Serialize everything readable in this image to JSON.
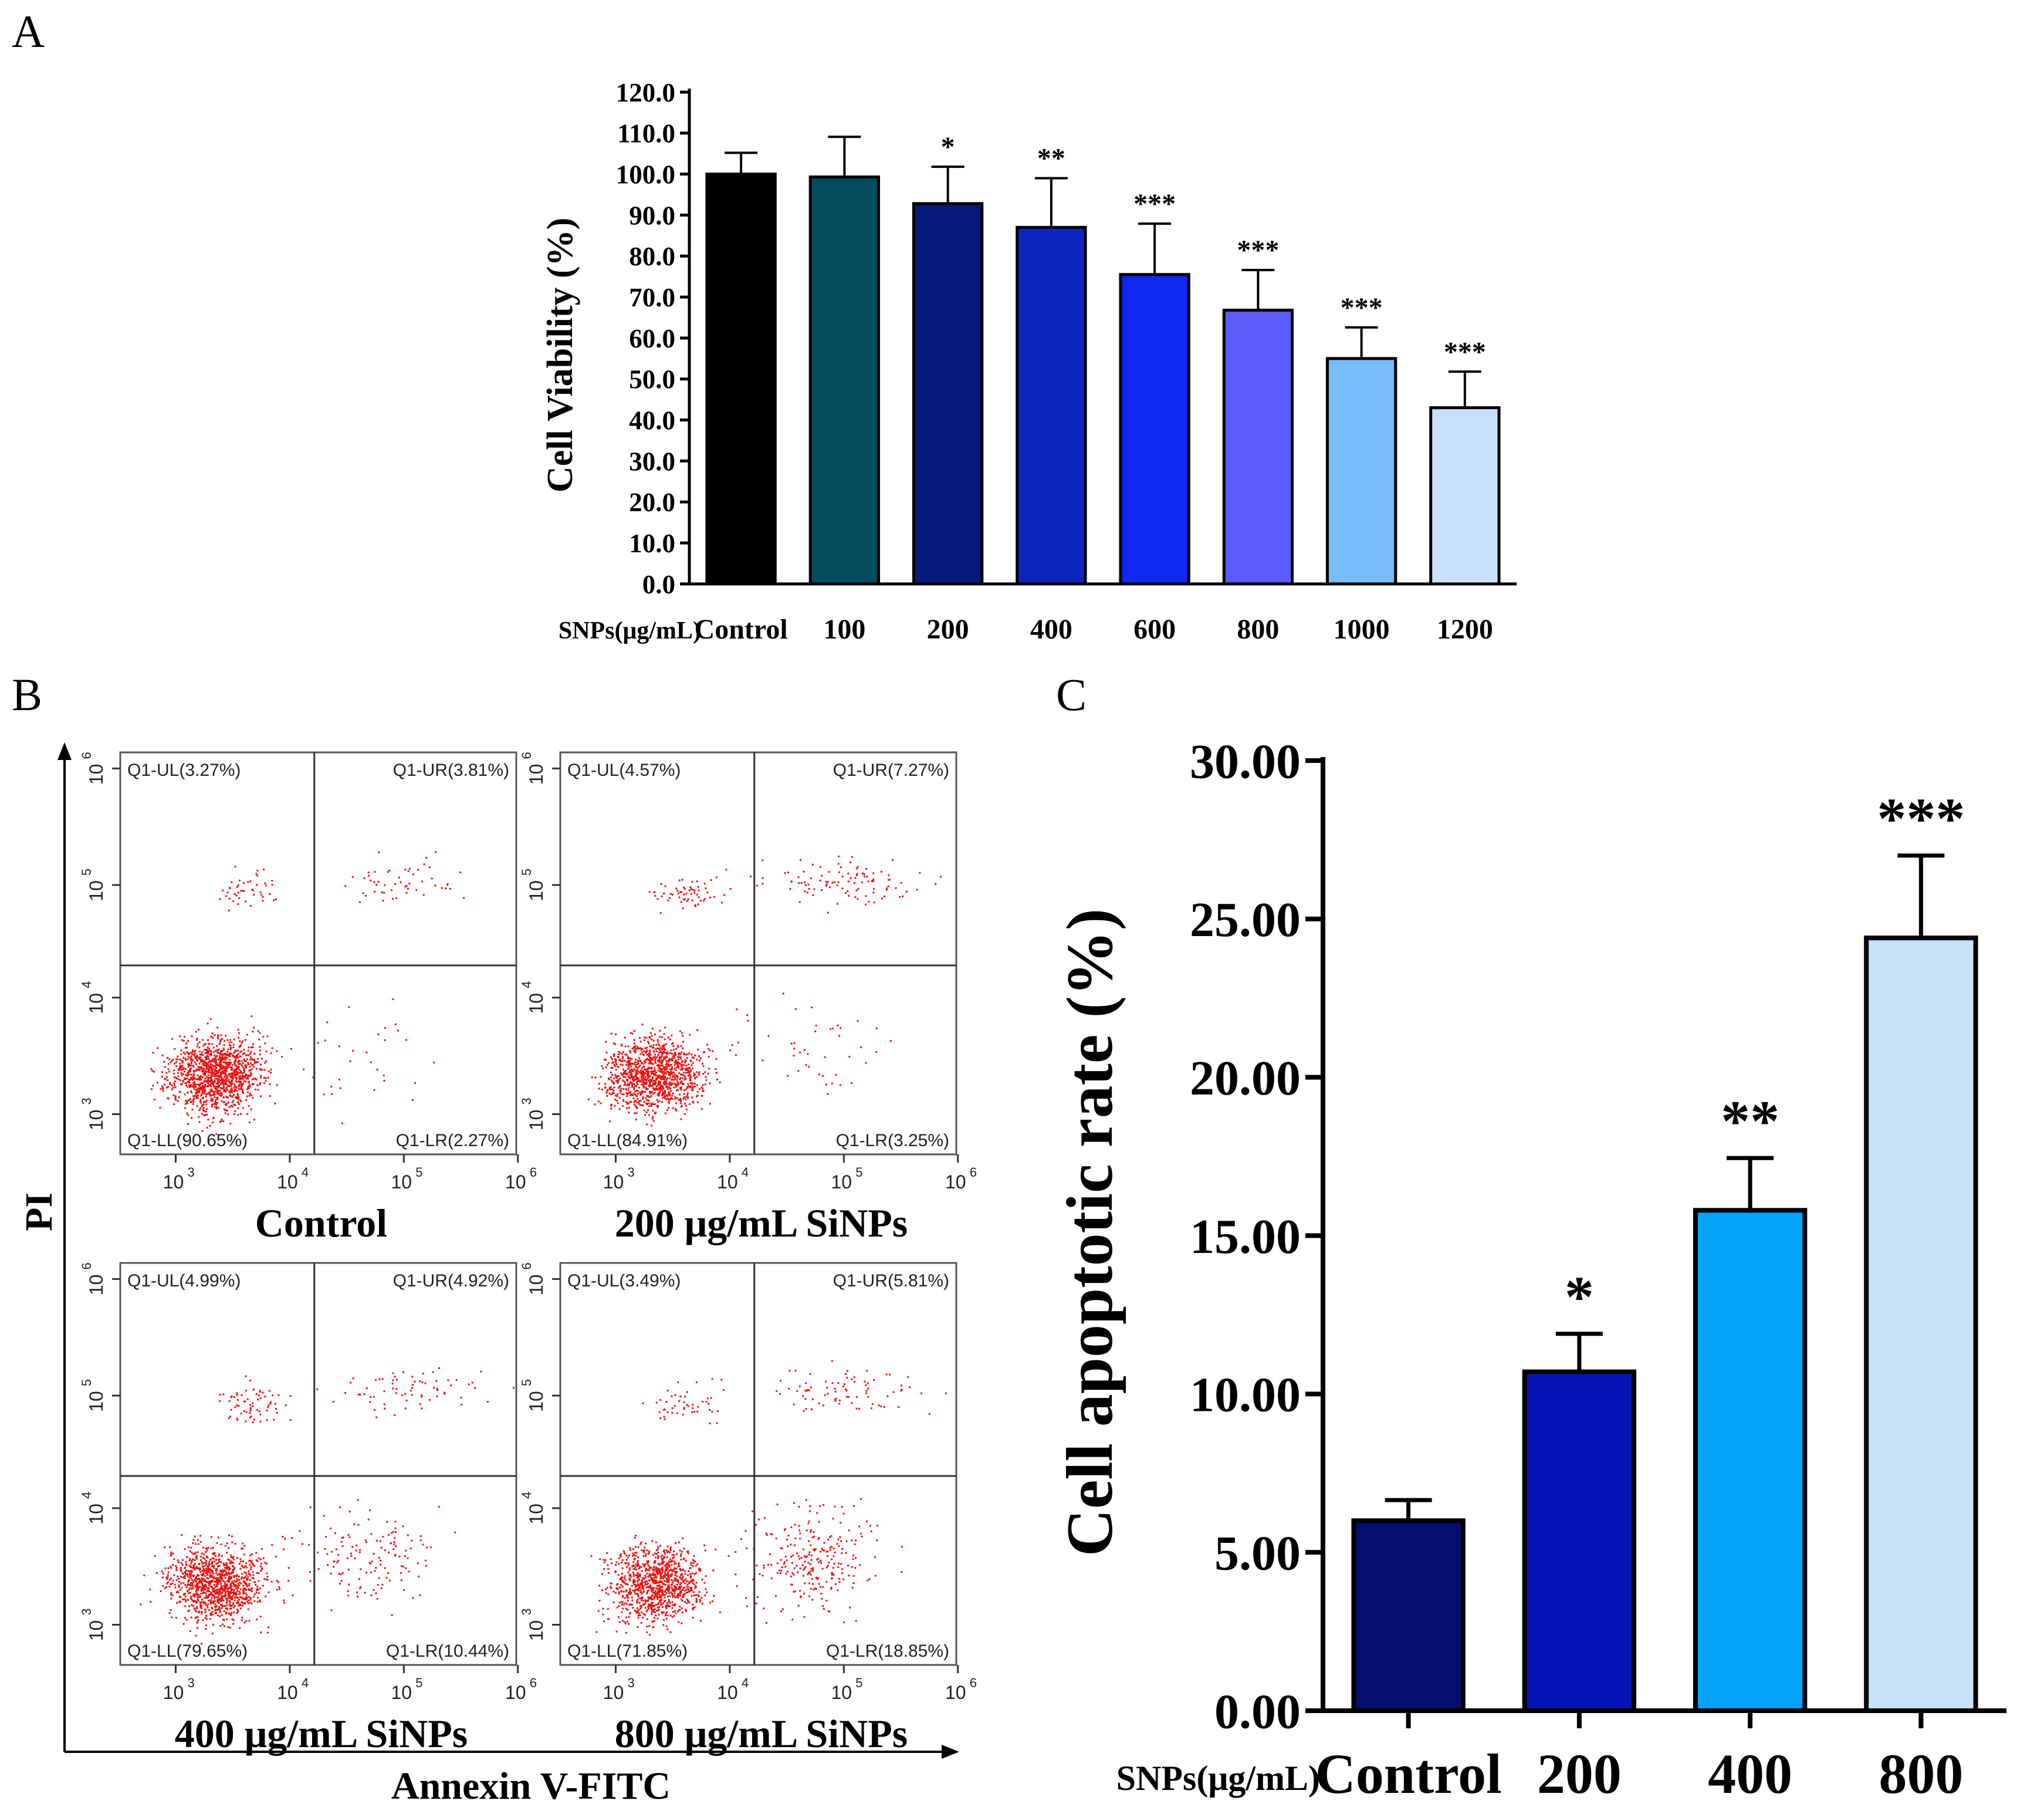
{
  "panel_labels": {
    "a": "A",
    "b": "B",
    "c": "C"
  },
  "chart_data": [
    {
      "id": "A",
      "type": "bar",
      "ylabel": "Cell Viability (%)",
      "xlabel_prefix": "SNPs(μg/mL)",
      "ylim": [
        0,
        120
      ],
      "yticks": [
        "0.0",
        "10.0",
        "20.0",
        "30.0",
        "40.0",
        "50.0",
        "60.0",
        "70.0",
        "80.0",
        "90.0",
        "100.0",
        "110.0",
        "120.0"
      ],
      "categories": [
        "Control",
        "100",
        "200",
        "400",
        "600",
        "800",
        "1000",
        "1200"
      ],
      "values": [
        100.0,
        99.3,
        92.8,
        87.0,
        75.5,
        66.8,
        55.0,
        43.0
      ],
      "errors": [
        5.2,
        9.8,
        9.0,
        12.0,
        12.4,
        9.8,
        7.6,
        8.8
      ],
      "significance": [
        "",
        "",
        "*",
        "**",
        "***",
        "***",
        "***",
        "***"
      ],
      "colors": [
        "#000000",
        "#034b5e",
        "#051a7a",
        "#0f25c0",
        "#0e27f2",
        "#5a5cfc",
        "#78bdfc",
        "#c6e2fd"
      ]
    },
    {
      "id": "B",
      "type": "scatter",
      "y_axis_label": "PI",
      "x_axis_label": "Annexin V-FITC",
      "axis_ticks": [
        "10",
        "3",
        "10",
        "4",
        "10",
        "5",
        "10",
        "6"
      ],
      "plots": [
        {
          "title": "Control",
          "ul": "Q1-UL(3.27%)",
          "ur": "Q1-UR(3.81%)",
          "ll": "Q1-LL(90.65%)",
          "lr": "Q1-LR(2.27%)",
          "ul_pct": 3.27,
          "ur_pct": 3.81,
          "ll_pct": 90.65,
          "lr_pct": 2.27
        },
        {
          "title": "200 μg/mL SiNPs",
          "ul": "Q1-UL(4.57%)",
          "ur": "Q1-UR(7.27%)",
          "ll": "Q1-LL(84.91%)",
          "lr": "Q1-LR(3.25%)",
          "ul_pct": 4.57,
          "ur_pct": 7.27,
          "ll_pct": 84.91,
          "lr_pct": 3.25
        },
        {
          "title": "400 μg/mL SiNPs",
          "ul": "Q1-UL(4.99%)",
          "ur": "Q1-UR(4.92%)",
          "ll": "Q1-LL(79.65%)",
          "lr": "Q1-LR(10.44%)",
          "ul_pct": 4.99,
          "ur_pct": 4.92,
          "ll_pct": 79.65,
          "lr_pct": 10.44
        },
        {
          "title": "800 μg/mL SiNPs",
          "ul": "Q1-UL(3.49%)",
          "ur": "Q1-UR(5.81%)",
          "ll": "Q1-LL(71.85%)",
          "lr": "Q1-LR(18.85%)",
          "ul_pct": 3.49,
          "ur_pct": 5.81,
          "ll_pct": 71.85,
          "lr_pct": 18.85
        }
      ]
    },
    {
      "id": "C",
      "type": "bar",
      "ylabel": "Cell apoptotic rate (%)",
      "xlabel_prefix": "SNPs(μg/mL)",
      "ylim": [
        0,
        30
      ],
      "yticks": [
        "0.00",
        "5.00",
        "10.00",
        "15.00",
        "20.00",
        "25.00",
        "30.00"
      ],
      "categories": [
        "Control",
        "200",
        "400",
        "800"
      ],
      "values": [
        6.0,
        10.7,
        15.8,
        24.4
      ],
      "errors": [
        0.65,
        1.2,
        1.65,
        2.6
      ],
      "significance": [
        "",
        "*",
        "**",
        "***"
      ],
      "colors": [
        "#030f6e",
        "#0515b5",
        "#03a2fc",
        "#c5e3fb"
      ]
    }
  ]
}
